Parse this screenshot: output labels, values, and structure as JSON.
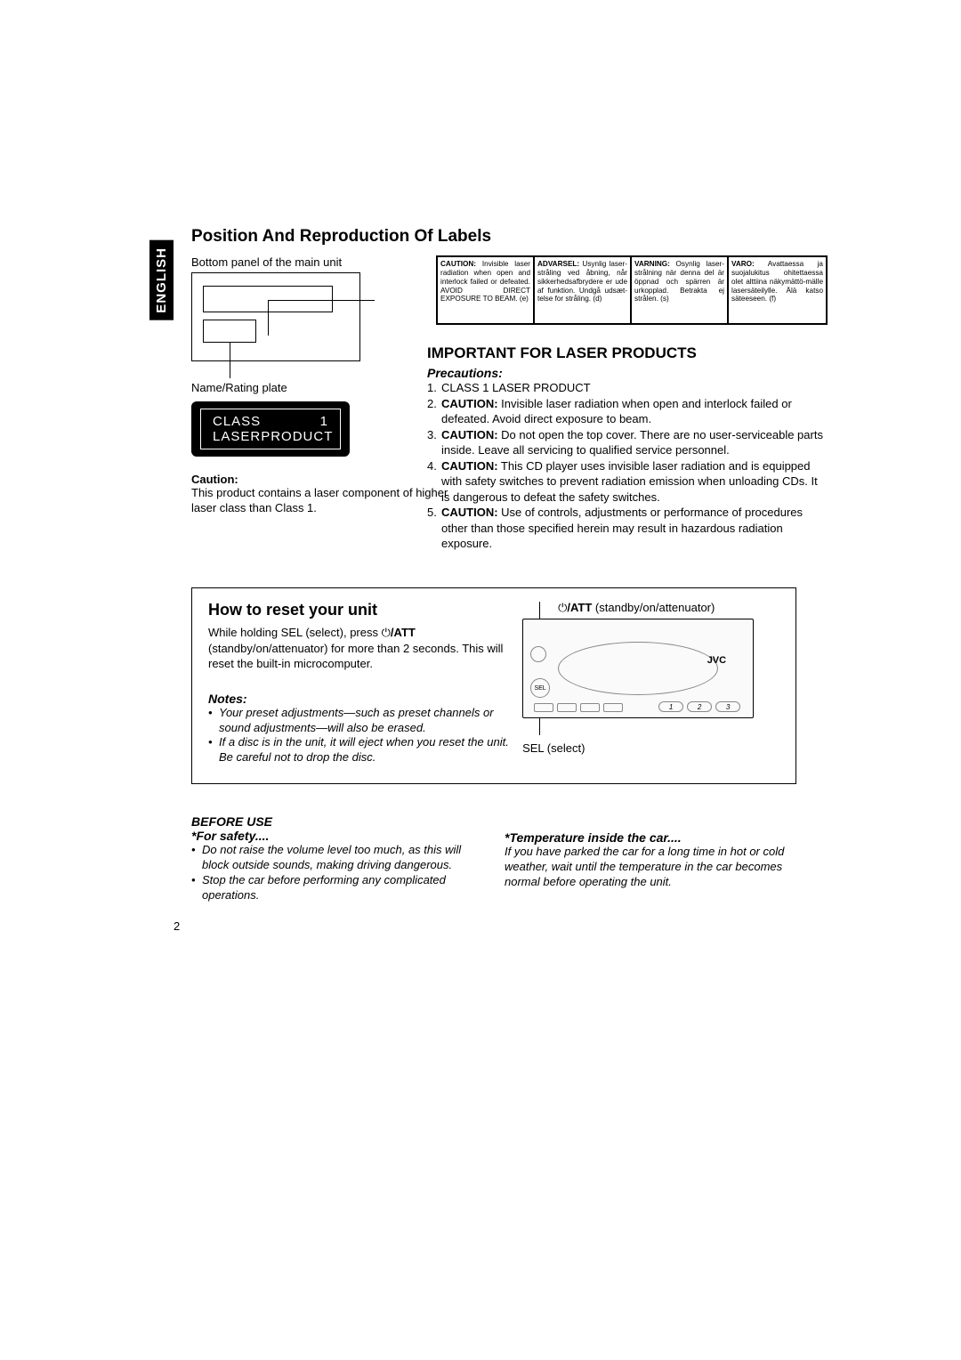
{
  "lang_tab": "ENGLISH",
  "title": "Position And Reproduction Of Labels",
  "bottom_panel": "Bottom panel of the main unit",
  "name_rating": "Name/Rating plate",
  "class1": {
    "l1a": "CLASS",
    "l1b": "1",
    "l2a": "LASER",
    "l2b": "PRODUCT"
  },
  "caution_h": "Caution:",
  "caution_body": "This product contains a laser component of higher laser class than Class 1.",
  "labels": {
    "en": "CAUTION: Invisible laser radiation when open and interlock failed or defeated. AVOID DIRECT EXPOSURE TO BEAM.                    (e)",
    "da": "ADVARSEL: Usynlig laser-stråling ved åbning, når sikkerhedsafbrydere er ude af funktion. Undgå udsæt-telse for stråling.        (d)",
    "sv": "VARNING: Osynlig laser-strålning när denna del är öppnad och spärren är urkopplad. Betrakta ej strålen.                  (s)",
    "fi": "VARO: Avattaessa ja suojalukitus ohitettaessa olet alttiina näkymättö-mälle lasersäteilylle. Älä katso säteeseen. (f)"
  },
  "important_h": "IMPORTANT FOR LASER PRODUCTS",
  "precautions_h": "Precautions:",
  "prec": [
    {
      "n": "1.",
      "t": "CLASS 1 LASER PRODUCT"
    },
    {
      "n": "2.",
      "t": "CAUTION: Invisible laser radiation when open and interlock failed or defeated. Avoid direct exposure to beam."
    },
    {
      "n": "3.",
      "t": "CAUTION: Do not open the top cover. There are no user-serviceable parts inside. Leave all servicing to qualified service personnel."
    },
    {
      "n": "4.",
      "t": "CAUTION: This CD player uses invisible laser radiation and is equipped with safety switches to prevent radiation emission when unloading CDs. It is dangerous to defeat the safety switches."
    },
    {
      "n": "5.",
      "t": "CAUTION: Use of controls, adjustments or performance of procedures other than those specified herein may result in hazardous radiation exposure."
    }
  ],
  "reset_h": "How to reset your unit",
  "reset_body1": "While holding SEL (select), press ",
  "reset_body2": " (standby/on/attenuator) for more than 2 seconds. This will reset the built-in microcomputer.",
  "pwr_att": "/ATT",
  "notes_h": "Notes:",
  "notes": [
    "Your preset adjustments—such as preset channels or sound adjustments—will also be erased.",
    "If a disc is in the unit, it will eject when you reset the unit. Be careful not to drop the disc."
  ],
  "att_label": "  (standby/on/attenuator)",
  "sel_label": "SEL (select)",
  "jvc": "JVC",
  "sel": "SEL",
  "btn1": "1",
  "btn2": "2",
  "btn3": "3",
  "before_use": "BEFORE USE",
  "for_safety": "*For safety....",
  "safety": [
    "Do not raise the volume level too much, as this will block outside sounds, making driving dangerous.",
    "Stop the car before performing any complicated operations."
  ],
  "temp_h": "*Temperature inside the car....",
  "temp_body": "If you have parked the car for a long time in hot or cold weather, wait until the temperature in the car becomes normal before operating the unit.",
  "page": "2"
}
